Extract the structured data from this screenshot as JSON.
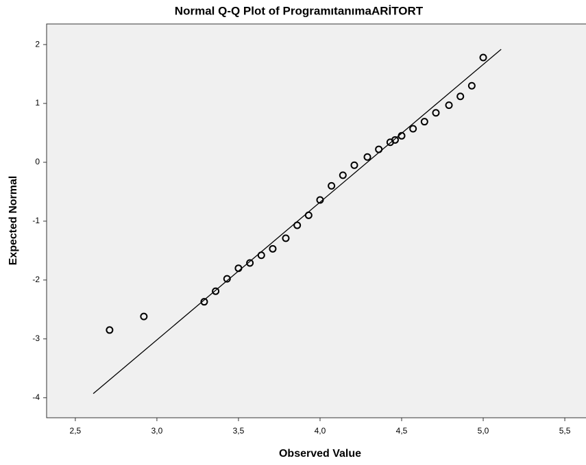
{
  "chart_data": {
    "type": "scatter",
    "title": "Normal Q-Q Plot of ProgramıtanımaARİTORT",
    "xlabel": "Observed Value",
    "ylabel": "Expected Normal",
    "x": [
      2.71,
      2.92,
      3.29,
      3.36,
      3.43,
      3.5,
      3.57,
      3.64,
      3.71,
      3.79,
      3.86,
      3.93,
      4.0,
      4.07,
      4.14,
      4.21,
      4.29,
      4.36,
      4.43,
      4.46,
      4.5,
      4.57,
      4.64,
      4.71,
      4.79,
      4.86,
      4.93,
      5.0
    ],
    "y": [
      -2.85,
      -2.62,
      -2.37,
      -2.19,
      -1.98,
      -1.8,
      -1.71,
      -1.58,
      -1.47,
      -1.29,
      -1.07,
      -0.9,
      -0.64,
      -0.4,
      -0.22,
      -0.05,
      0.09,
      0.22,
      0.34,
      0.38,
      0.45,
      0.57,
      0.69,
      0.84,
      0.97,
      1.12,
      1.3,
      1.78
    ],
    "color": "#000000",
    "reference_line": {
      "x": [
        2.61,
        5.11
      ],
      "y": [
        -3.93,
        1.92
      ],
      "color": "#000000"
    },
    "xlim": [
      2.324,
      5.63
    ],
    "ylim": [
      -4.34,
      2.35
    ],
    "xticks": [
      {
        "value": 2.5,
        "label": "2,5"
      },
      {
        "value": 3.0,
        "label": "3,0"
      },
      {
        "value": 3.5,
        "label": "3,5"
      },
      {
        "value": 4.0,
        "label": "4,0"
      },
      {
        "value": 4.5,
        "label": "4,5"
      },
      {
        "value": 5.0,
        "label": "5,0"
      },
      {
        "value": 5.5,
        "label": "5,5"
      }
    ],
    "yticks": [
      -4,
      -3,
      -2,
      -1,
      0,
      1,
      2
    ],
    "background": "#f0f0f0"
  }
}
